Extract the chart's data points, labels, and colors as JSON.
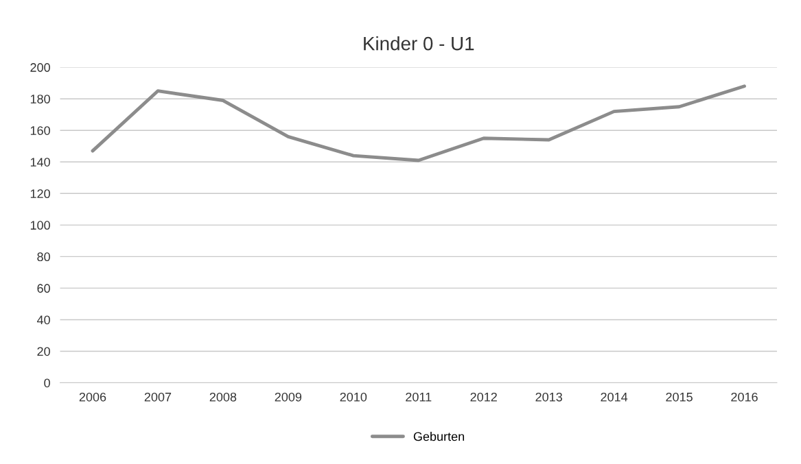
{
  "chart_data": {
    "type": "line",
    "title": "Kinder 0 - U1",
    "categories": [
      "2006",
      "2007",
      "2008",
      "2009",
      "2010",
      "2011",
      "2012",
      "2013",
      "2014",
      "2015",
      "2016"
    ],
    "series": [
      {
        "name": "Geburten",
        "color": "#8c8c8c",
        "values": [
          147,
          185,
          179,
          156,
          144,
          141,
          155,
          154,
          172,
          175,
          188
        ]
      }
    ],
    "ylim": [
      0,
      200
    ],
    "yticks": [
      0,
      20,
      40,
      60,
      80,
      100,
      120,
      140,
      160,
      180,
      200
    ],
    "grid": "y",
    "legend": "bottom",
    "marker": "none",
    "line_style": "solid"
  }
}
